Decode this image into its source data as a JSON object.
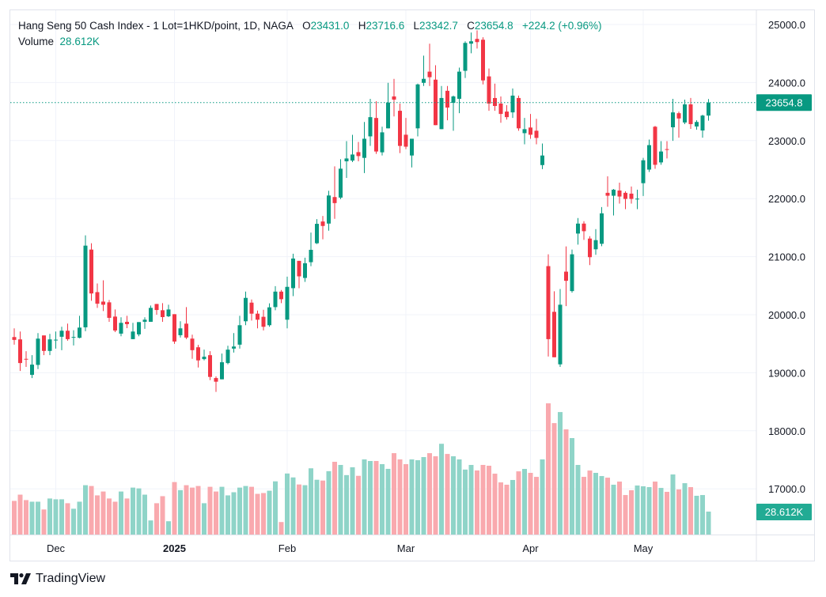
{
  "header": {
    "symbol": "Hang Seng 50 Cash Index - 1 Lot=1HKD/point, 1D, NAGA",
    "o_label": "O",
    "o_value": "23431.0",
    "h_label": "H",
    "h_value": "23716.6",
    "l_label": "L",
    "l_value": "23342.7",
    "c_label": "C",
    "c_value": "23654.8",
    "change": "+224.2 (+0.96%)",
    "volume_label": "Volume",
    "volume_value": "28.612K"
  },
  "price_tag": "23654.8",
  "volume_tag": "28.612K",
  "brand": "TradingView",
  "colors": {
    "up": "#089981",
    "down": "#F23645",
    "volume_up": "#8fd4c8",
    "volume_down": "#f9a9ae",
    "price_tag": "#089981",
    "volume_tag": "#22ab94"
  },
  "chart_data": {
    "type": "candlestick",
    "ylim": [
      16500,
      25400
    ],
    "grid": true,
    "y_ticks": [
      "25000.0",
      "24000.0",
      "23000.0",
      "22000.0",
      "21000.0",
      "20000.0",
      "19000.0",
      "18000.0",
      "17000.0"
    ],
    "y_tick_values": [
      25000,
      24000,
      23000,
      22000,
      21000,
      20000,
      19000,
      18000,
      17000
    ],
    "x_ticks": [
      {
        "label": "Dec",
        "bar_index": 7,
        "bold": false
      },
      {
        "label": "2025",
        "bar_index": 27,
        "bold": true
      },
      {
        "label": "Feb",
        "bar_index": 46,
        "bold": false
      },
      {
        "label": "Mar",
        "bar_index": 66,
        "bold": false
      },
      {
        "label": "Apr",
        "bar_index": 87,
        "bold": false
      },
      {
        "label": "May",
        "bar_index": 106,
        "bold": false
      }
    ],
    "ohlc_fields": [
      "open",
      "high",
      "low",
      "close"
    ],
    "ohlc": [
      [
        19615,
        19765,
        19484,
        19566
      ],
      [
        19575,
        19710,
        19031,
        19167
      ],
      [
        19240,
        19371,
        19100,
        19235
      ],
      [
        18964,
        19303,
        18909,
        19140
      ],
      [
        19135,
        19683,
        19063,
        19588
      ],
      [
        19643,
        19643,
        19303,
        19376
      ],
      [
        19376,
        19670,
        19303,
        19575
      ],
      [
        19565,
        19710,
        19416,
        19570
      ],
      [
        19620,
        19792,
        19389,
        19724
      ],
      [
        19724,
        19846,
        19552,
        19579
      ],
      [
        19612,
        19733,
        19470,
        19617
      ],
      [
        19602,
        19982,
        19593,
        19778
      ],
      [
        19783,
        21367,
        19715,
        21190
      ],
      [
        21122,
        21231,
        20240,
        20366
      ],
      [
        20389,
        20538,
        20118,
        20190
      ],
      [
        20226,
        20593,
        20063,
        20172
      ],
      [
        20213,
        20253,
        19878,
        19946
      ],
      [
        19968,
        20090,
        19701,
        19728
      ],
      [
        19674,
        19955,
        19629,
        19860
      ],
      [
        19878,
        19982,
        19769,
        19837
      ],
      [
        19579,
        19860,
        19579,
        19710
      ],
      [
        19661,
        19873,
        19629,
        19873
      ],
      [
        19878,
        19955,
        19756,
        19914
      ],
      [
        19878,
        20158,
        19878,
        20118
      ],
      [
        20185,
        20185,
        20000,
        20081
      ],
      [
        20077,
        20199,
        19878,
        19959
      ],
      [
        19973,
        20172,
        19959,
        20090
      ],
      [
        20009,
        20009,
        19498,
        19538
      ],
      [
        19647,
        19887,
        19606,
        19765
      ],
      [
        19846,
        20131,
        19579,
        19606
      ],
      [
        19588,
        19656,
        19240,
        19389
      ],
      [
        19439,
        19480,
        19090,
        19213
      ],
      [
        19235,
        19398,
        19213,
        19276
      ],
      [
        19303,
        19371,
        18873,
        18928
      ],
      [
        18909,
        18937,
        18670,
        18846
      ],
      [
        18887,
        19330,
        18887,
        19181
      ],
      [
        19167,
        19466,
        19145,
        19398
      ],
      [
        19416,
        19683,
        19348,
        19452
      ],
      [
        19484,
        19982,
        19416,
        19819
      ],
      [
        19887,
        20398,
        19819,
        20290
      ],
      [
        20208,
        20262,
        19900,
        20018
      ],
      [
        20018,
        20072,
        19765,
        19914
      ],
      [
        19964,
        20086,
        19729,
        19792
      ],
      [
        19819,
        20195,
        19792,
        20127
      ],
      [
        20131,
        20493,
        20077,
        20398
      ],
      [
        20398,
        20425,
        20199,
        20267
      ],
      [
        19914,
        20656,
        19765,
        20480
      ],
      [
        20457,
        21050,
        20321,
        20968
      ],
      [
        20928,
        20928,
        20457,
        20661
      ],
      [
        20633,
        20982,
        20566,
        20887
      ],
      [
        20905,
        21416,
        20837,
        21118
      ],
      [
        21231,
        21647,
        21217,
        21566
      ],
      [
        21606,
        21701,
        21299,
        21529
      ],
      [
        21570,
        22136,
        21448,
        22054
      ],
      [
        22027,
        22557,
        21652,
        21923
      ],
      [
        22018,
        22679,
        21991,
        22516
      ],
      [
        22643,
        22991,
        22357,
        22692
      ],
      [
        22656,
        23100,
        22629,
        22760
      ],
      [
        22801,
        22977,
        22643,
        22733
      ],
      [
        22702,
        23321,
        22440,
        23032
      ],
      [
        23073,
        23720,
        22908,
        23404
      ],
      [
        23390,
        23679,
        22771,
        22812
      ],
      [
        22798,
        23239,
        22743,
        23142
      ],
      [
        23211,
        23995,
        23211,
        23656
      ],
      [
        23761,
        24064,
        23417,
        23706
      ],
      [
        23514,
        23638,
        22784,
        22908
      ],
      [
        23101,
        23390,
        22853,
        22895
      ],
      [
        22743,
        23032,
        22537,
        23032
      ],
      [
        23211,
        23982,
        23073,
        23968
      ],
      [
        23995,
        24463,
        23940,
        24064
      ],
      [
        24188,
        24670,
        23940,
        24092
      ],
      [
        24050,
        24298,
        23266,
        23266
      ],
      [
        23197,
        23940,
        23197,
        23734
      ],
      [
        23858,
        23940,
        23349,
        23569
      ],
      [
        23651,
        23775,
        23170,
        23761
      ],
      [
        23720,
        24257,
        23472,
        24188
      ],
      [
        24202,
        24711,
        24078,
        24683
      ],
      [
        24670,
        24862,
        24505,
        24711
      ],
      [
        24752,
        24900,
        24587,
        24697
      ],
      [
        24738,
        24780,
        23968,
        24037
      ],
      [
        24106,
        24243,
        23514,
        23638
      ],
      [
        23734,
        23982,
        23514,
        23596
      ],
      [
        23638,
        23761,
        23307,
        23459
      ],
      [
        23500,
        23610,
        23362,
        23404
      ],
      [
        23486,
        23899,
        23390,
        23775
      ],
      [
        23734,
        23775,
        23170,
        23211
      ],
      [
        23128,
        23390,
        22936,
        23197
      ],
      [
        23225,
        23459,
        23032,
        23101
      ],
      [
        23170,
        23376,
        22936,
        23046
      ],
      [
        22578,
        22950,
        22509,
        22743
      ],
      [
        20837,
        21041,
        19280,
        19579
      ],
      [
        20050,
        20403,
        19267,
        19267
      ],
      [
        19145,
        20443,
        19100,
        20172
      ],
      [
        20742,
        21176,
        20149,
        20584
      ],
      [
        20407,
        21122,
        20380,
        21041
      ],
      [
        21398,
        21665,
        21208,
        21570
      ],
      [
        21570,
        21611,
        21290,
        21439
      ],
      [
        21312,
        21353,
        20855,
        20991
      ],
      [
        21127,
        21475,
        21032,
        21285
      ],
      [
        21222,
        21855,
        21181,
        21747
      ],
      [
        22100,
        22385,
        21860,
        22050
      ],
      [
        22050,
        22167,
        21710,
        22154
      ],
      [
        22140,
        22276,
        21914,
        22036
      ],
      [
        22100,
        22127,
        21819,
        21995
      ],
      [
        22086,
        22208,
        21914,
        21995
      ],
      [
        21986,
        22154,
        21819,
        22000
      ],
      [
        22266,
        22702,
        22046,
        22661
      ],
      [
        22500,
        23018,
        22459,
        22922
      ],
      [
        23239,
        23252,
        22514,
        22583
      ],
      [
        22624,
        22991,
        22583,
        22812
      ],
      [
        22853,
        22991,
        22693,
        22840
      ],
      [
        23229,
        23720,
        22995,
        23486
      ],
      [
        23472,
        23500,
        23050,
        23381
      ],
      [
        23312,
        23706,
        23284,
        23624
      ],
      [
        23624,
        23734,
        23202,
        23284
      ],
      [
        23243,
        23349,
        23188,
        23321
      ],
      [
        23174,
        23445,
        23050,
        23431
      ],
      [
        23431.0,
        23716.6,
        23342.7,
        23654.8
      ]
    ],
    "volume_unit": "K",
    "volume": [
      42.0,
      49.8,
      43.0,
      41.0,
      41.0,
      31.3,
      45.0,
      44.0,
      44.0,
      39.1,
      32.2,
      41.0,
      61.6,
      60.6,
      48.9,
      53.7,
      45.0,
      41.0,
      53.7,
      45.0,
      58.6,
      57.6,
      49.8,
      17.6,
      39.1,
      47.9,
      16.6,
      65.5,
      55.4,
      61.6,
      58.6,
      60.6,
      39.1,
      59.6,
      53.7,
      59.6,
      48.9,
      52.8,
      58.6,
      60.6,
      59.6,
      50.8,
      51.8,
      54.7,
      66.4,
      15.6,
      76.2,
      71.3,
      62.5,
      61.6,
      82.7,
      68.4,
      67.4,
      79.1,
      90.8,
      86.9,
      74.2,
      84.0,
      73.3,
      93.8,
      91.8,
      91.8,
      87.9,
      82.0,
      101.6,
      93.8,
      87.9,
      93.8,
      92.8,
      96.7,
      101.6,
      97.7,
      113.3,
      100.6,
      97.7,
      93.8,
      81.1,
      86.9,
      80.0,
      86.9,
      85.9,
      76.0,
      65.1,
      62.2,
      68.1,
      78.9,
      81.9,
      77.0,
      72.0,
      93.8,
      163.8,
      139.1,
      152.9,
      131.3,
      120.4,
      86.9,
      72.0,
      79.9,
      77.0,
      73.0,
      71.0,
      62.2,
      66.1,
      49.3,
      55.3,
      61.2,
      60.2,
      59.2,
      66.1,
      58.2,
      53.3,
      75.0,
      56.3,
      64.1,
      59.2,
      48.4,
      49.3,
      28.612
    ],
    "last_price": 23654.8
  }
}
